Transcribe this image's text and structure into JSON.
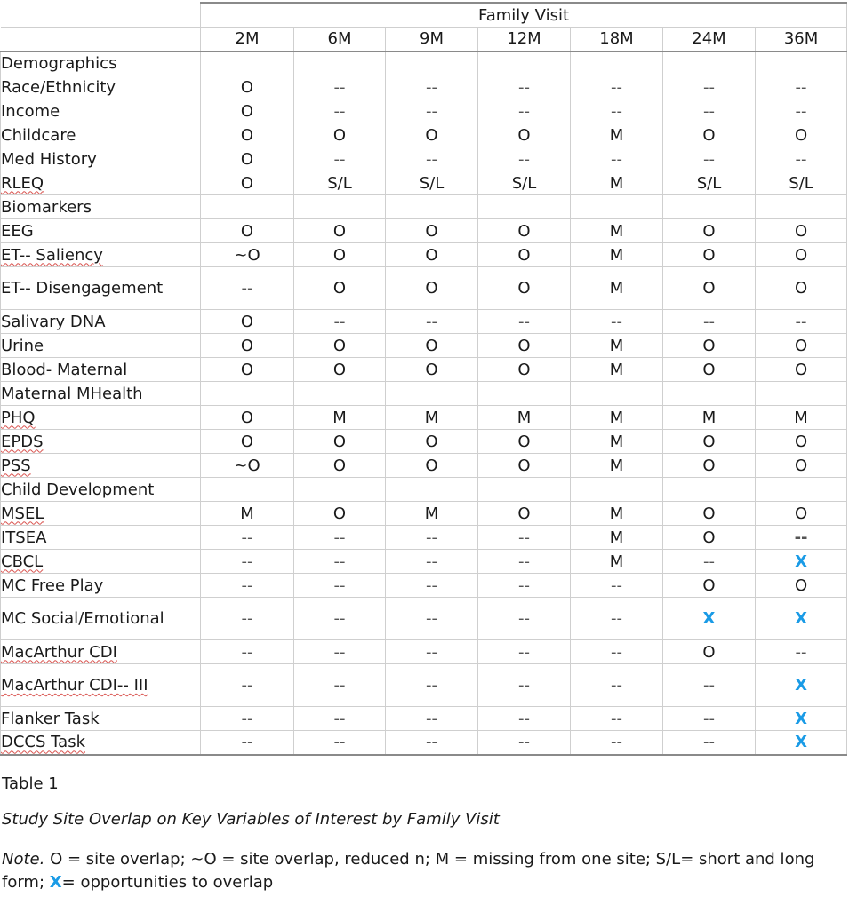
{
  "header": {
    "group_label": "Family Visit",
    "visits": [
      "2M",
      "6M",
      "9M",
      "12M",
      "18M",
      "24M",
      "36M"
    ]
  },
  "sections": [
    {
      "title": "Demographics",
      "rows": [
        {
          "label": "Race/Ethnicity",
          "values": [
            "O",
            "--",
            "--",
            "--",
            "--",
            "--",
            "--"
          ]
        },
        {
          "label": "Income",
          "values": [
            "O",
            "--",
            "--",
            "--",
            "--",
            "--",
            "--"
          ]
        },
        {
          "label": "Childcare",
          "values": [
            "O",
            "O",
            "O",
            "O",
            "M",
            "O",
            "O"
          ]
        },
        {
          "label": "Med History",
          "values": [
            "O",
            "--",
            "--",
            "--",
            "--",
            "--",
            "--"
          ]
        },
        {
          "label": "RLEQ",
          "values": [
            "O",
            "S/L",
            "S/L",
            "S/L",
            "M",
            "S/L",
            "S/L"
          ]
        }
      ]
    },
    {
      "title": "Biomarkers",
      "rows": [
        {
          "label": "EEG",
          "values": [
            "O",
            "O",
            "O",
            "O",
            "M",
            "O",
            "O"
          ]
        },
        {
          "label": "ET-- Saliency",
          "values": [
            "~O",
            "O",
            "O",
            "O",
            "M",
            "O",
            "O"
          ]
        },
        {
          "label": "ET-- Disengagement",
          "values": [
            "--",
            "O",
            "O",
            "O",
            "M",
            "O",
            "O"
          ]
        },
        {
          "label": "Salivary DNA",
          "values": [
            "O",
            "--",
            "--",
            "--",
            "--",
            "--",
            "--"
          ]
        },
        {
          "label": "Urine",
          "values": [
            "O",
            "O",
            "O",
            "O",
            "M",
            "O",
            "O"
          ]
        },
        {
          "label": "Blood- Maternal",
          "values": [
            "O",
            "O",
            "O",
            "O",
            "M",
            "O",
            "O"
          ]
        }
      ]
    },
    {
      "title": "Maternal MHealth",
      "rows": [
        {
          "label": "PHQ",
          "values": [
            "O",
            "M",
            "M",
            "M",
            "M",
            "M",
            "M"
          ]
        },
        {
          "label": "EPDS",
          "values": [
            "O",
            "O",
            "O",
            "O",
            "M",
            "O",
            "O"
          ]
        },
        {
          "label": "PSS",
          "values": [
            "~O",
            "O",
            "O",
            "O",
            "M",
            "O",
            "O"
          ]
        }
      ]
    },
    {
      "title": "Child Development",
      "rows": [
        {
          "label": "MSEL",
          "values": [
            "M",
            "O",
            "M",
            "O",
            "M",
            "O",
            "O"
          ]
        },
        {
          "label": "ITSEA",
          "values": [
            "--",
            "--",
            "--",
            "--",
            "M",
            "O",
            "--"
          ]
        },
        {
          "label": "CBCL",
          "values": [
            "--",
            "--",
            "--",
            "--",
            "M",
            "--",
            "X"
          ]
        },
        {
          "label": "MC Free Play",
          "values": [
            "--",
            "--",
            "--",
            "--",
            "--",
            "O",
            "O"
          ]
        },
        {
          "label": "MC Social/Emotional",
          "values": [
            "--",
            "--",
            "--",
            "--",
            "--",
            "X",
            "X"
          ]
        },
        {
          "label": "MacArthur CDI",
          "values": [
            "--",
            "--",
            "--",
            "--",
            "--",
            "O",
            "--"
          ]
        },
        {
          "label": "MacArthur CDI-- III",
          "values": [
            "--",
            "--",
            "--",
            "--",
            "--",
            "--",
            "X"
          ]
        },
        {
          "label": "Flanker Task",
          "values": [
            "--",
            "--",
            "--",
            "--",
            "--",
            "--",
            "X"
          ]
        },
        {
          "label": "DCCS Task",
          "values": [
            "--",
            "--",
            "--",
            "--",
            "--",
            "--",
            "X"
          ]
        }
      ]
    }
  ],
  "caption": {
    "table_number": "Table 1",
    "title": "Study Site Overlap on Key Variables of Interest by Family Visit",
    "note_label": "Note.",
    "note_part1": " O = site overlap; ~O = site overlap, reduced n; M = missing from one site; S/L= short and long form; ",
    "note_x": "X",
    "note_part2": "= opportunities to overlap"
  },
  "colors": {
    "accent_x": "#1a9be6",
    "spellcheck": "#d9534f"
  }
}
